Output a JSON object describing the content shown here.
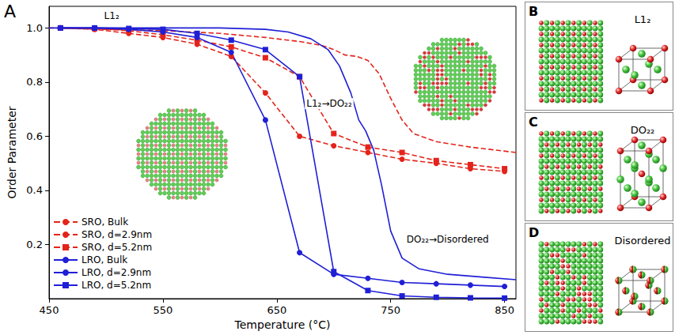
{
  "chart_data": {
    "type": "line",
    "panel_label": "A",
    "x_label": "Temperature (°C)",
    "y_label": "Order Parameter",
    "xlim": [
      450,
      860
    ],
    "ylim": [
      0,
      1.08
    ],
    "xticks": [
      450,
      550,
      650,
      750,
      850
    ],
    "yticks": [
      0.2,
      0.4,
      0.6,
      0.8,
      {
        "value": 1.0,
        "label": "1.0"
      }
    ],
    "grid": false,
    "legend": "lower left",
    "annotations": [
      {
        "text": "L1₂",
        "x": 505,
        "y": 1.045
      },
      {
        "text": "L1₂→DO₂₂",
        "x": 696,
        "y": 0.72
      },
      {
        "text": "DO₂₂→Disordered",
        "x": 800,
        "y": 0.22
      }
    ],
    "series": [
      {
        "name": "SRO, Bulk",
        "color": "#e3241b",
        "marker": "none",
        "line_style": "dashed",
        "x": [
          450,
          500,
          550,
          600,
          640,
          670,
          690,
          700,
          710,
          720,
          730,
          740,
          750,
          760,
          770,
          790,
          820,
          860
        ],
        "values": [
          1.0,
          0.995,
          0.99,
          0.98,
          0.965,
          0.95,
          0.935,
          0.92,
          0.9,
          0.895,
          0.88,
          0.83,
          0.74,
          0.66,
          0.61,
          0.58,
          0.56,
          0.54
        ]
      },
      {
        "name": "SRO, d=2.9nm",
        "color": "#e3241b",
        "marker": "circle",
        "line_style": "dashed",
        "x": [
          460,
          490,
          520,
          550,
          580,
          610,
          640,
          670,
          700,
          730,
          760,
          790,
          820,
          850
        ],
        "values": [
          1.0,
          0.995,
          0.98,
          0.965,
          0.94,
          0.895,
          0.76,
          0.6,
          0.565,
          0.54,
          0.515,
          0.5,
          0.48,
          0.47
        ]
      },
      {
        "name": "SRO, d=5.2nm",
        "color": "#e3241b",
        "marker": "square",
        "line_style": "dashed",
        "x": [
          460,
          490,
          520,
          550,
          580,
          610,
          640,
          670,
          700,
          730,
          760,
          790,
          820,
          850
        ],
        "values": [
          1.0,
          0.998,
          0.99,
          0.975,
          0.955,
          0.93,
          0.89,
          0.82,
          0.61,
          0.56,
          0.54,
          0.51,
          0.495,
          0.48
        ]
      },
      {
        "name": "LRO, Bulk",
        "color": "#1f1fd6",
        "marker": "none",
        "line_style": "solid",
        "x": [
          450,
          500,
          550,
          600,
          640,
          660,
          680,
          695,
          705,
          715,
          722,
          728,
          735,
          742,
          750,
          760,
          775,
          800,
          830,
          860
        ],
        "values": [
          1.0,
          1.0,
          1.0,
          1.0,
          0.995,
          0.985,
          0.96,
          0.92,
          0.86,
          0.76,
          0.66,
          0.62,
          0.55,
          0.42,
          0.25,
          0.15,
          0.11,
          0.09,
          0.08,
          0.07
        ]
      },
      {
        "name": "LRO, d=2.9nm",
        "color": "#1f1fd6",
        "marker": "circle",
        "line_style": "solid",
        "x": [
          460,
          490,
          520,
          550,
          580,
          610,
          640,
          670,
          700,
          730,
          760,
          790,
          820,
          850
        ],
        "values": [
          1.0,
          1.0,
          0.995,
          0.985,
          0.965,
          0.91,
          0.66,
          0.17,
          0.09,
          0.075,
          0.06,
          0.055,
          0.05,
          0.045
        ]
      },
      {
        "name": "LRO, d=5.2nm",
        "color": "#1f1fd6",
        "marker": "square",
        "line_style": "solid",
        "x": [
          460,
          490,
          520,
          550,
          580,
          610,
          640,
          670,
          700,
          730,
          760,
          790,
          820,
          850
        ],
        "values": [
          1.0,
          1.0,
          0.998,
          0.995,
          0.98,
          0.955,
          0.92,
          0.82,
          0.1,
          0.03,
          0.01,
          0.005,
          0.003,
          0.002
        ]
      }
    ]
  },
  "panels": [
    {
      "label": "B",
      "structure": "L1₂"
    },
    {
      "label": "C",
      "structure": "DO₂₂"
    },
    {
      "label": "D",
      "structure": "Disordered"
    }
  ]
}
